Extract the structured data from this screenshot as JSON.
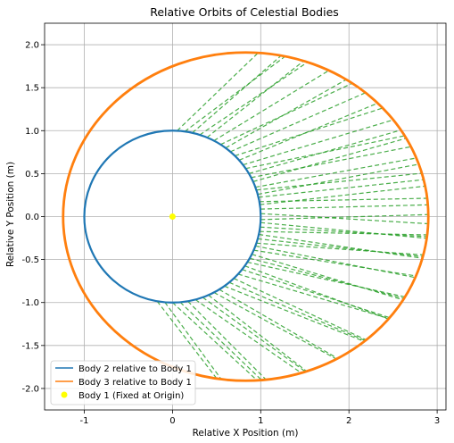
{
  "chart_data": {
    "type": "line",
    "title": "Relative Orbits of Celestial Bodies",
    "xlabel": "Relative X Position (m)",
    "ylabel": "Relative Y Position (m)",
    "xlim": [
      -1.45,
      3.1
    ],
    "ylim": [
      -2.25,
      2.25
    ],
    "xticks": [
      -1,
      0,
      1,
      2,
      3
    ],
    "yticks": [
      -2.0,
      -1.5,
      -1.0,
      -0.5,
      0.0,
      0.5,
      1.0,
      1.5,
      2.0
    ],
    "grid": true,
    "legend_position": "lower-left",
    "series": [
      {
        "name": "Body 2 relative to Body 1",
        "kind": "line",
        "color": "#1f77b4",
        "shape": "circle",
        "center": [
          0,
          0
        ],
        "radius": 1.0
      },
      {
        "name": "Body 3 relative to Body 1",
        "kind": "line",
        "color": "#ff7f0e",
        "shape": "ellipse",
        "center": [
          0.83,
          0.0
        ],
        "rx": 2.07,
        "ry": 1.91
      },
      {
        "name": "Body 1 (Fixed at Origin)",
        "kind": "scatter",
        "color": "#ffff00",
        "x": [
          0
        ],
        "y": [
          0
        ]
      }
    ],
    "connection_lines": {
      "color": "#2ca02c",
      "style": "dashed",
      "angles_deg": [
        2,
        5,
        8,
        10,
        13,
        15,
        18,
        20,
        24,
        27,
        30,
        34,
        37,
        41,
        45,
        49,
        53,
        57,
        62,
        67,
        72,
        77,
        82,
        87,
        -2,
        -4,
        -7,
        -10,
        -12,
        -15,
        -18,
        -20,
        -23,
        -26,
        -29,
        -32,
        -35,
        -38,
        -42,
        -46,
        -50,
        -54,
        -58,
        -62,
        -66,
        -70,
        -75,
        -80,
        -85,
        -90,
        -95,
        -100
      ]
    },
    "legend": [
      {
        "label": "Body 2 relative to Body 1",
        "marker": "line",
        "color": "#1f77b4"
      },
      {
        "label": "Body 3 relative to Body 1",
        "marker": "line",
        "color": "#ff7f0e"
      },
      {
        "label": "Body 1 (Fixed at Origin)",
        "marker": "dot",
        "color": "#ffff00"
      }
    ]
  }
}
